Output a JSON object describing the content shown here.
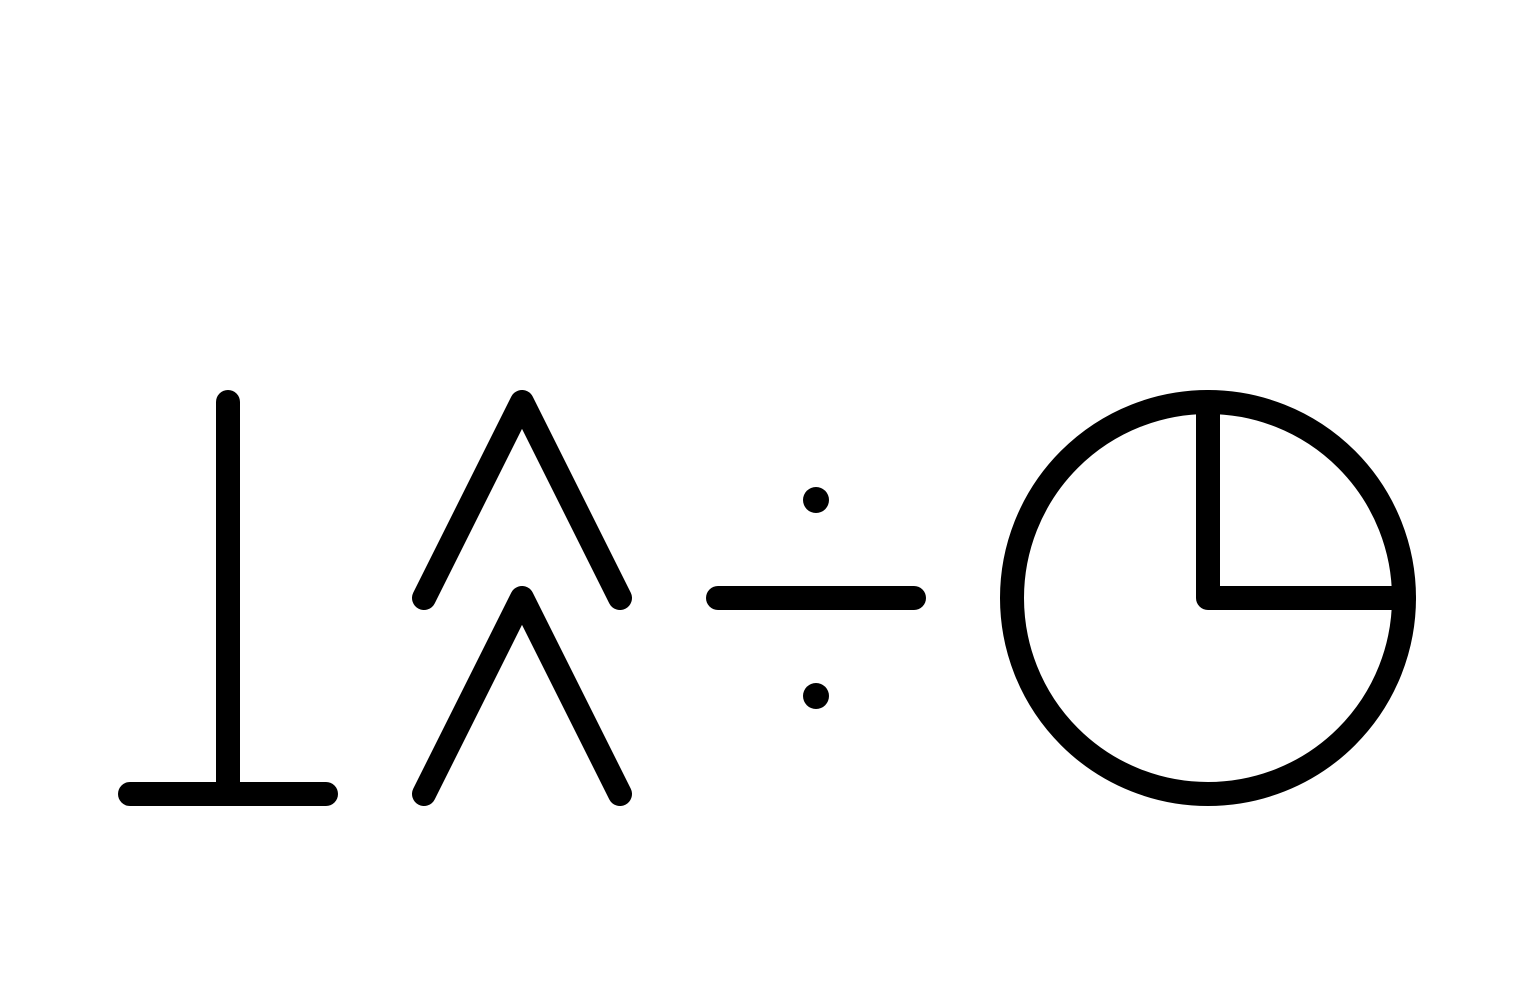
{
  "colors": {
    "background": "#ffffff",
    "stroke": "#000000"
  },
  "glyphs": [
    {
      "name": "up-tack-icon",
      "symbol": "⊥"
    },
    {
      "name": "double-wedge-icon",
      "symbol": "⩓"
    },
    {
      "name": "division-sign-icon",
      "symbol": "÷"
    },
    {
      "name": "quarter-circle-icon",
      "symbol": "◷"
    }
  ]
}
